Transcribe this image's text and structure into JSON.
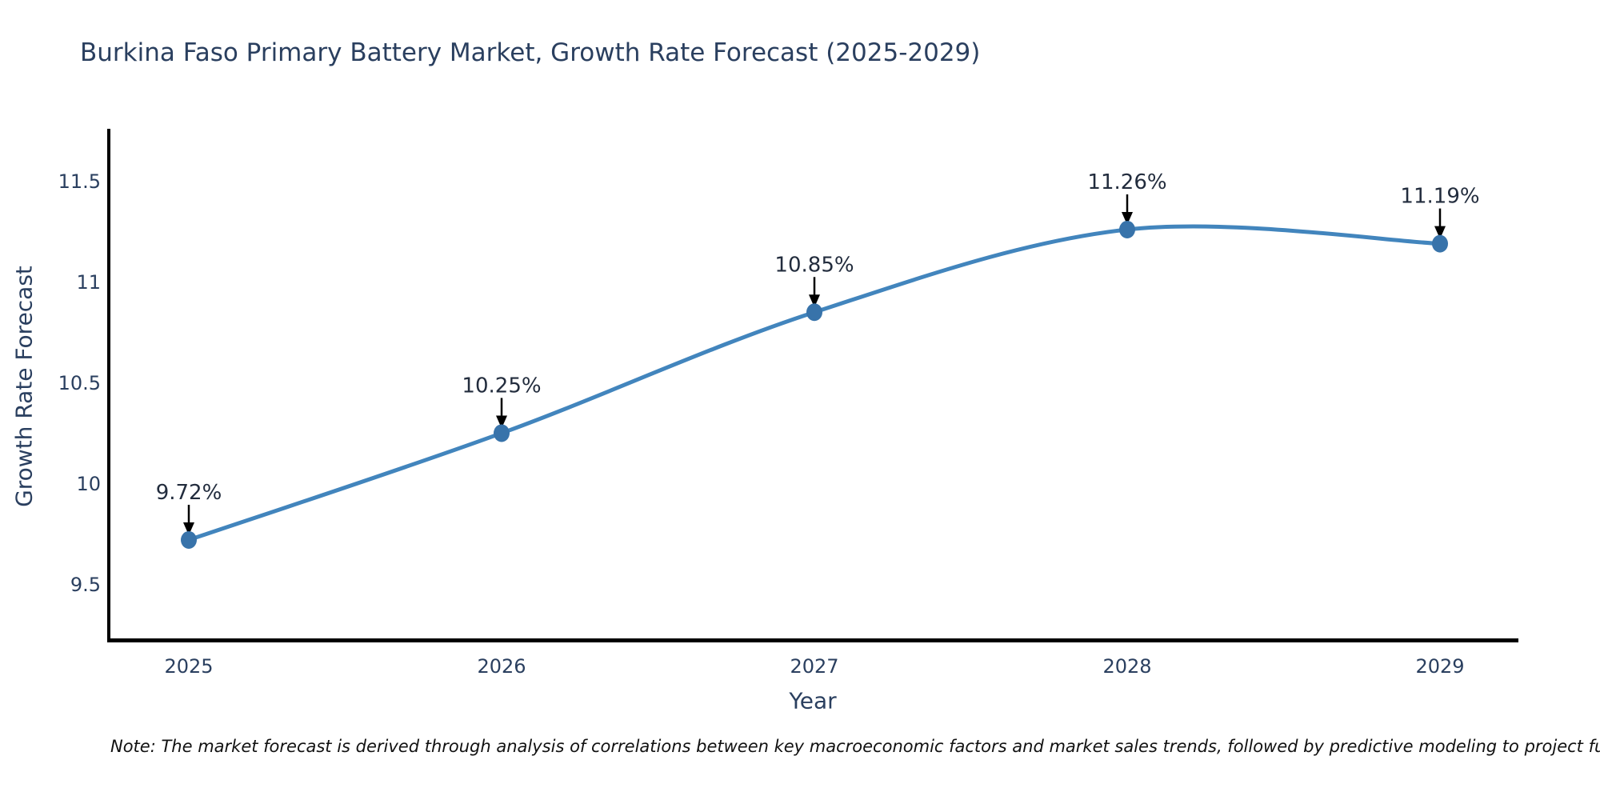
{
  "chart_data": {
    "type": "line",
    "title": "Burkina Faso Primary Battery Market, Growth Rate Forecast (2025-2029)",
    "xlabel": "Year",
    "ylabel": "Growth Rate Forecast",
    "x": [
      2025,
      2026,
      2027,
      2028,
      2029
    ],
    "series": [
      {
        "name": "Growth Rate Forecast",
        "values": [
          9.72,
          10.25,
          10.85,
          11.26,
          11.19
        ],
        "point_labels": [
          "9.72%",
          "10.25%",
          "10.85%",
          "11.26%",
          "11.19%"
        ],
        "line_color": "#4285bd",
        "marker_color": "#3873aa"
      }
    ],
    "yticks": [
      9.5,
      10,
      10.5,
      11,
      11.5
    ],
    "ylim": [
      9.22,
      11.76
    ],
    "line_shape": "spline",
    "grid": false,
    "legend": false,
    "annotation_arrow_color": "#000000",
    "axis_line_color": "#000000"
  },
  "note": {
    "text": "Note: The market forecast is derived through analysis of correlations between key macroeconomic factors and market sales trends, followed by predictive modeling to project future sales"
  },
  "colors": {
    "title_text": "#2a3f5f",
    "tick_text": "#2a3f5f",
    "annotation_text": "#222c3d",
    "note_text": "#111111",
    "background": "#ffffff"
  }
}
